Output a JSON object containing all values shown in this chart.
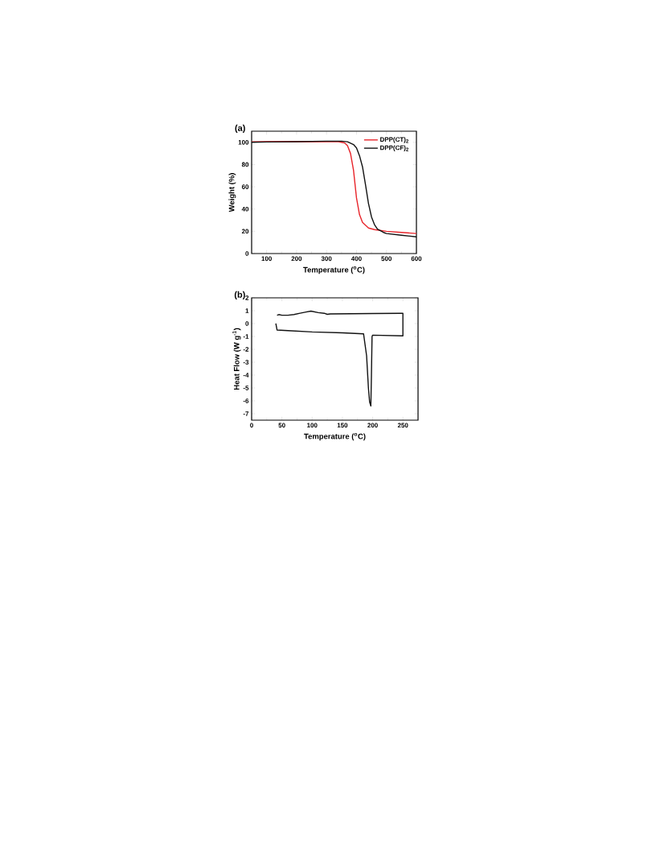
{
  "chart_data": [
    {
      "type": "line",
      "title": "(a)",
      "xlabel": "Temperature ($^{o}$C)",
      "ylabel": "Weight (%)",
      "xlim": [
        50,
        600
      ],
      "ylim": [
        0,
        110
      ],
      "xticks": [
        100,
        200,
        300,
        400,
        500,
        600
      ],
      "yticks": [
        0,
        20,
        40,
        60,
        80,
        100
      ],
      "legend": "top right",
      "series": [
        {
          "name": "DPP(CT)$_{2}$",
          "color": "#e8242a",
          "x": [
            50,
            100,
            200,
            300,
            340,
            360,
            370,
            380,
            390,
            400,
            410,
            420,
            440,
            460,
            500,
            550,
            600
          ],
          "values": [
            100.5,
            100.6,
            null,
            100.8,
            100.6,
            99.5,
            97,
            90,
            75,
            50,
            35,
            28,
            23,
            21.5,
            20,
            19,
            18
          ]
        },
        {
          "name": "DPP(CF)$_{2}$",
          "color": "#111111",
          "x": [
            50,
            100,
            200,
            300,
            350,
            370,
            390,
            400,
            410,
            420,
            430,
            440,
            450,
            460,
            470,
            490,
            500,
            550,
            600
          ],
          "values": [
            100,
            100.3,
            100.6,
            101,
            101,
            100.5,
            98,
            95,
            88,
            78,
            62,
            45,
            33,
            26,
            22,
            19,
            18,
            16.5,
            15
          ]
        }
      ]
    },
    {
      "type": "line",
      "title": "(b)",
      "xlabel": "Temperature ($^{o}$C)",
      "ylabel": "Heat Flow (W g$^{-1}$)",
      "xlim": [
        0,
        275
      ],
      "ylim": [
        -7.5,
        2
      ],
      "xticks": [
        0,
        50,
        100,
        150,
        200,
        250
      ],
      "yticks": [
        -7,
        -6,
        -5,
        -4,
        -3,
        -2,
        -1,
        0,
        1,
        2
      ],
      "series": [
        {
          "color": "#111111",
          "x": [
            40,
            42,
            60,
            100,
            150,
            185,
            190,
            193,
            195,
            197,
            198,
            199,
            200,
            220,
            250,
            250,
            245,
            200,
            130,
            125,
            120,
            110,
            98,
            90,
            80,
            70,
            60,
            50,
            45,
            42
          ],
          "values": [
            0,
            -0.5,
            -0.55,
            -0.65,
            -0.72,
            -0.8,
            -2.5,
            -5,
            -6.1,
            -6.4,
            -4,
            -1,
            -0.9,
            -0.92,
            -0.95,
            0.8,
            0.8,
            0.78,
            0.75,
            0.72,
            0.8,
            0.85,
            0.97,
            0.9,
            0.8,
            0.7,
            0.65,
            0.65,
            0.7,
            0.65
          ]
        }
      ]
    }
  ]
}
